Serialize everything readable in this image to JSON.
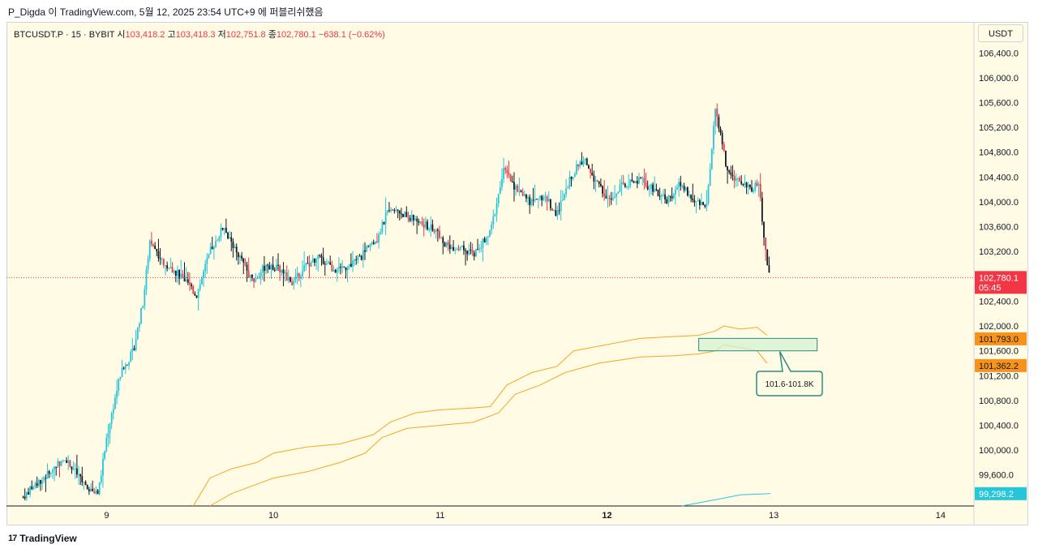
{
  "header_text": "P_Digda 이 TradingView.com, 5월 12, 2025 23:54 UTC+9 에 퍼블리쉬했음",
  "legend": {
    "symbol": "BTCUSDT.P · 15 · BYBIT",
    "open_label": "시",
    "open": "103,418.2",
    "high_label": "고",
    "high": "103,418.3",
    "low_label": "저",
    "low": "102,751.8",
    "close_label": "종",
    "close": "102,780.1",
    "change": "−638.1 (−0.62%)"
  },
  "currency_button": "USDT",
  "footer_brand": "TradingView",
  "colors": {
    "background": "#fffbe5",
    "up": "#26c6da",
    "down": "#131722",
    "down_alt": "#f23645",
    "band": "#f5a623",
    "lower_indicator": "#26c6da",
    "price_label": "#f23645",
    "band_label": "#f7931a",
    "zone_fill": "#d6f2d0",
    "zone_stroke": "#2e8b82"
  },
  "chart_data": {
    "type": "candlestick",
    "symbol": "BTCUSDT.P",
    "interval": "15",
    "exchange": "BYBIT",
    "ylim": [
      99100,
      106900
    ],
    "xlim": [
      8.4,
      14.2
    ],
    "y_ticks": [
      99600,
      100000,
      100400,
      100800,
      101200,
      101600,
      102000,
      102400,
      102800,
      103200,
      103600,
      104000,
      104400,
      104800,
      105200,
      105600,
      106000,
      106400
    ],
    "y_tick_labels": [
      "99,600.0",
      "100,000.0",
      "100,400.0",
      "100,800.0",
      "101,200.0",
      "101,600.0",
      "102,000.0",
      "102,400.0",
      "102,800.0",
      "103,200.0",
      "103,600.0",
      "104,000.0",
      "104,400.0",
      "104,800.0",
      "105,200.0",
      "105,600.0",
      "106,000.0",
      "106,400.0"
    ],
    "x_ticks": [
      9,
      10,
      11,
      12,
      13,
      14
    ],
    "x_tick_labels": [
      "9",
      "10",
      "11",
      "12",
      "13",
      "14"
    ],
    "price_path": [
      [
        8.5,
        99250
      ],
      [
        8.62,
        99550
      ],
      [
        8.75,
        99880
      ],
      [
        8.88,
        99400
      ],
      [
        8.95,
        99300
      ],
      [
        9.0,
        100200
      ],
      [
        9.08,
        101200
      ],
      [
        9.16,
        101600
      ],
      [
        9.22,
        102400
      ],
      [
        9.26,
        103400
      ],
      [
        9.34,
        103000
      ],
      [
        9.45,
        102800
      ],
      [
        9.54,
        102500
      ],
      [
        9.62,
        103200
      ],
      [
        9.7,
        103600
      ],
      [
        9.78,
        103200
      ],
      [
        9.88,
        102700
      ],
      [
        9.96,
        103000
      ],
      [
        10.04,
        102900
      ],
      [
        10.12,
        102700
      ],
      [
        10.2,
        103000
      ],
      [
        10.28,
        103100
      ],
      [
        10.36,
        102900
      ],
      [
        10.44,
        102950
      ],
      [
        10.52,
        103100
      ],
      [
        10.62,
        103400
      ],
      [
        10.7,
        103950
      ],
      [
        10.78,
        103800
      ],
      [
        10.86,
        103700
      ],
      [
        10.96,
        103550
      ],
      [
        11.04,
        103300
      ],
      [
        11.12,
        103250
      ],
      [
        11.2,
        103150
      ],
      [
        11.3,
        103500
      ],
      [
        11.38,
        104500
      ],
      [
        11.46,
        104200
      ],
      [
        11.54,
        104000
      ],
      [
        11.62,
        104100
      ],
      [
        11.7,
        103800
      ],
      [
        11.78,
        104400
      ],
      [
        11.86,
        104700
      ],
      [
        11.94,
        104300
      ],
      [
        12.02,
        104000
      ],
      [
        12.1,
        104300
      ],
      [
        12.2,
        104350
      ],
      [
        12.28,
        104200
      ],
      [
        12.36,
        104000
      ],
      [
        12.44,
        104300
      ],
      [
        12.52,
        104000
      ],
      [
        12.6,
        103950
      ],
      [
        12.65,
        105500
      ],
      [
        12.72,
        104500
      ],
      [
        12.8,
        104300
      ],
      [
        12.86,
        104200
      ],
      [
        12.91,
        104300
      ],
      [
        12.95,
        103200
      ],
      [
        12.98,
        102780
      ]
    ],
    "band_upper": [
      [
        9.52,
        99100
      ],
      [
        9.62,
        99550
      ],
      [
        9.75,
        99700
      ],
      [
        9.9,
        99800
      ],
      [
        10.0,
        99950
      ],
      [
        10.2,
        100050
      ],
      [
        10.4,
        100100
      ],
      [
        10.6,
        100250
      ],
      [
        10.7,
        100450
      ],
      [
        10.85,
        100600
      ],
      [
        11.0,
        100650
      ],
      [
        11.2,
        100680
      ],
      [
        11.3,
        100700
      ],
      [
        11.4,
        101050
      ],
      [
        11.55,
        101250
      ],
      [
        11.7,
        101350
      ],
      [
        11.8,
        101600
      ],
      [
        12.0,
        101700
      ],
      [
        12.2,
        101800
      ],
      [
        12.4,
        101830
      ],
      [
        12.55,
        101850
      ],
      [
        12.65,
        101920
      ],
      [
        12.7,
        102000
      ],
      [
        12.8,
        101950
      ],
      [
        12.9,
        101980
      ],
      [
        12.96,
        101850
      ]
    ],
    "band_lower": [
      [
        9.62,
        99100
      ],
      [
        9.75,
        99300
      ],
      [
        9.9,
        99450
      ],
      [
        10.0,
        99550
      ],
      [
        10.2,
        99650
      ],
      [
        10.4,
        99800
      ],
      [
        10.55,
        99950
      ],
      [
        10.65,
        100200
      ],
      [
        10.8,
        100350
      ],
      [
        11.0,
        100400
      ],
      [
        11.2,
        100450
      ],
      [
        11.35,
        100600
      ],
      [
        11.45,
        100900
      ],
      [
        11.6,
        101050
      ],
      [
        11.75,
        101250
      ],
      [
        11.95,
        101400
      ],
      [
        12.2,
        101500
      ],
      [
        12.4,
        101520
      ],
      [
        12.55,
        101550
      ],
      [
        12.65,
        101600
      ],
      [
        12.7,
        101700
      ],
      [
        12.8,
        101650
      ],
      [
        12.9,
        101600
      ],
      [
        12.96,
        101400
      ]
    ],
    "lower_indicator": [
      [
        12.45,
        99100
      ],
      [
        12.65,
        99200
      ],
      [
        12.8,
        99280
      ],
      [
        12.98,
        99298.2
      ]
    ],
    "current_price": 102780.1,
    "current_price_label": "102,780.1",
    "countdown": "05:45",
    "band_labels": [
      {
        "value": 101793.0,
        "label": "101,793.0"
      },
      {
        "value": 101362.2,
        "label": "101,362.2"
      }
    ],
    "indicator_label": {
      "value": 99298.2,
      "label": "99,298.2"
    },
    "zone": {
      "from_x": 12.55,
      "to_x": 13.26,
      "low": 101600,
      "high": 101800,
      "label": "101.6-101.8K"
    }
  }
}
